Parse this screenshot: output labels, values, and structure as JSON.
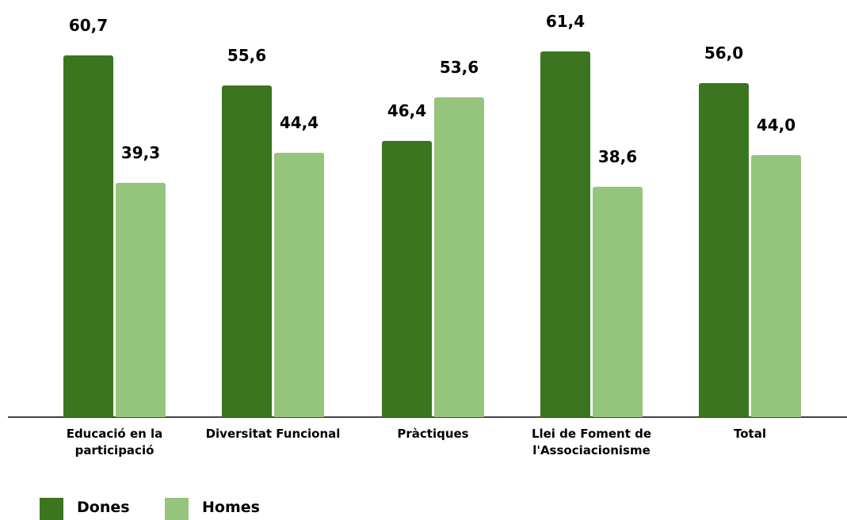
{
  "chart_data": {
    "type": "bar",
    "categories": [
      "Educació en la participació",
      "Diversitat Funcional",
      "Pràctiques",
      "Llei de Foment de l'Associacionisme",
      "Total"
    ],
    "series": [
      {
        "name": "Dones",
        "color": "#3b7520",
        "values": [
          60.7,
          55.6,
          46.4,
          61.4,
          56.0
        ],
        "value_labels": [
          "60,7",
          "55,6",
          "46,4",
          "61,4",
          "56,0"
        ]
      },
      {
        "name": "Homes",
        "color": "#95c47d",
        "values": [
          39.3,
          44.4,
          53.6,
          38.6,
          44.0
        ],
        "value_labels": [
          "39,3",
          "44,4",
          "53,6",
          "38,6",
          "44,0"
        ]
      }
    ],
    "ylim": [
      0,
      70
    ],
    "grid": false
  }
}
